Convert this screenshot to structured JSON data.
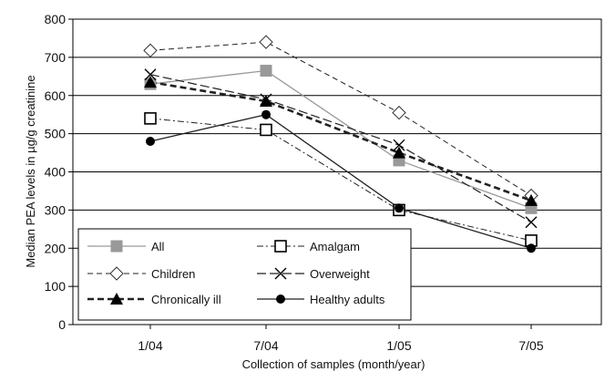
{
  "chart_data": {
    "type": "line",
    "title": "",
    "xlabel": "Collection of samples (month/year)",
    "ylabel": "Median PEA levels in µg/g creatinine",
    "categories": [
      "1/04",
      "7/04",
      "1/05",
      "7/05"
    ],
    "ylim": [
      0,
      800
    ],
    "yticks": [
      0,
      100,
      200,
      300,
      400,
      500,
      600,
      700,
      800
    ],
    "grid": "horizontal",
    "legend_position": "bottom-left",
    "series": [
      {
        "name": "All",
        "values": [
          630,
          665,
          430,
          305
        ],
        "color": "#999999",
        "dash": "solid",
        "marker": "square-filled"
      },
      {
        "name": "Amalgam",
        "values": [
          540,
          510,
          300,
          220
        ],
        "color": "#222222",
        "dash": "dash-dot",
        "marker": "square-open"
      },
      {
        "name": "Children",
        "values": [
          718,
          740,
          555,
          338
        ],
        "color": "#222222",
        "dash": "dashed",
        "marker": "diamond-open"
      },
      {
        "name": "Overweight",
        "values": [
          655,
          590,
          470,
          268
        ],
        "color": "#222222",
        "dash": "long-dash",
        "marker": "x"
      },
      {
        "name": "Chronically ill",
        "values": [
          635,
          585,
          450,
          325
        ],
        "color": "#222222",
        "dash": "thick-dashed",
        "marker": "triangle-filled"
      },
      {
        "name": "Healthy adults",
        "values": [
          480,
          550,
          305,
          200
        ],
        "color": "#222222",
        "dash": "solid",
        "marker": "circle-filled"
      }
    ]
  }
}
